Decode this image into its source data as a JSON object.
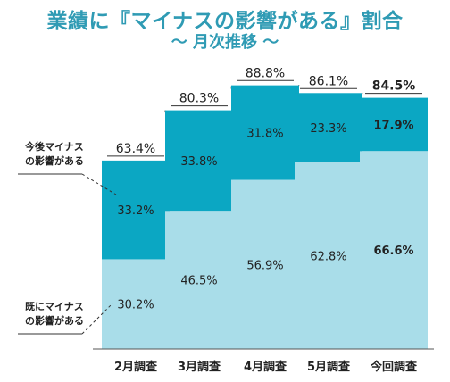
{
  "title": "業績に『マイナスの影響がある』割合",
  "subtitle": "〜 月次推移 〜",
  "legend": {
    "top_line1": "今後マイナス",
    "top_line2": "の影響がある",
    "bottom_line1": "既にマイナス",
    "bottom_line2": "の影響がある"
  },
  "colors": {
    "dark": "#0ba7c3",
    "light": "#a9dde9",
    "title": "#2f9bb4"
  },
  "chart_data": {
    "type": "bar",
    "stacked": true,
    "categories": [
      "2月調査",
      "3月調査",
      "4月調査",
      "5月調査",
      "今回調査"
    ],
    "series": [
      {
        "name": "既にマイナスの影響がある",
        "values": [
          30.2,
          46.5,
          56.9,
          62.8,
          66.6
        ],
        "labels": [
          "30.2%",
          "46.5%",
          "56.9%",
          "62.8%",
          "66.6%"
        ]
      },
      {
        "name": "今後マイナスの影響がある",
        "values": [
          33.2,
          33.8,
          31.8,
          23.3,
          17.9
        ],
        "labels": [
          "33.2%",
          "33.8%",
          "31.8%",
          "23.3%",
          "17.9%"
        ]
      }
    ],
    "totals": [
      63.4,
      80.3,
      88.8,
      86.1,
      84.5
    ],
    "total_labels": [
      "63.4%",
      "80.3%",
      "88.8%",
      "86.1%",
      "84.5%"
    ],
    "highlight_index": 4,
    "ylim": [
      0,
      100
    ]
  }
}
